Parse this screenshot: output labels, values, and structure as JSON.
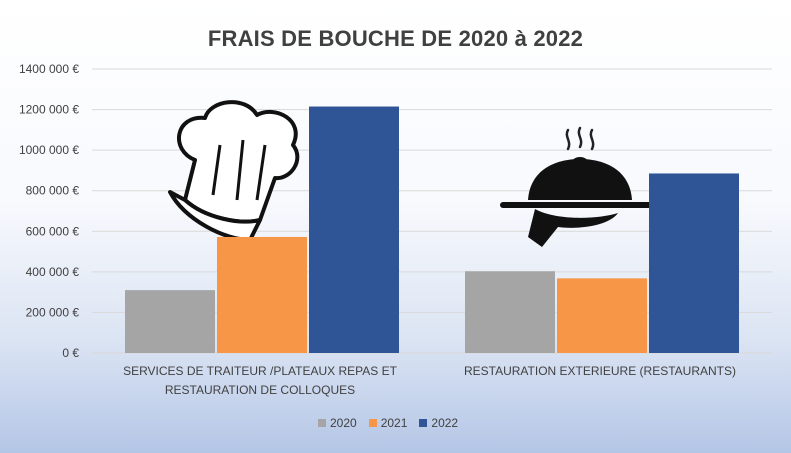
{
  "chart_data": {
    "type": "bar",
    "title": "FRAIS DE BOUCHE DE 2020 à 2022",
    "categories": [
      "SERVICES DE TRAITEUR /PLATEAUX REPAS ET RESTAURATION DE COLLOQUES",
      "RESTAURATION EXTERIEURE (RESTAURANTS)"
    ],
    "category_lines": [
      [
        "SERVICES DE TRAITEUR /PLATEAUX REPAS ET",
        "RESTAURATION DE COLLOQUES"
      ],
      [
        "RESTAURATION EXTERIEURE (RESTAURANTS)"
      ]
    ],
    "series": [
      {
        "name": "2020",
        "color": "#a5a5a5",
        "values": [
          310000,
          403000
        ]
      },
      {
        "name": "2021",
        "color": "#f79646",
        "values": [
          572000,
          368000
        ]
      },
      {
        "name": "2022",
        "color": "#2f5597",
        "values": [
          1215000,
          885000
        ]
      }
    ],
    "ylim": [
      0,
      1400000
    ],
    "yticks": [
      0,
      200000,
      400000,
      600000,
      800000,
      1000000,
      1200000,
      1400000
    ],
    "ytick_labels": [
      "0 €",
      "200 000 €",
      "400 000 €",
      "600 000 €",
      "800 000 €",
      "1000 000 €",
      "1200 000 €",
      "1400 000 €"
    ],
    "legend_position": "bottom",
    "grid": true,
    "icons": [
      "chef-hat-icon",
      "serving-cloche-icon"
    ]
  }
}
